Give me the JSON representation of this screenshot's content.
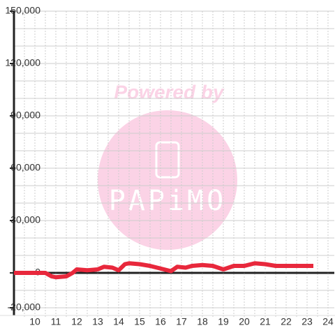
{
  "chart_data": {
    "type": "line",
    "x": [
      9,
      10,
      10.5,
      10.8,
      11,
      11.5,
      11.8,
      12,
      12.5,
      13,
      13.3,
      13.7,
      14,
      14.3,
      14.5,
      15,
      15.5,
      16,
      16.5,
      16.8,
      17.2,
      17.5,
      18,
      18.5,
      19,
      19.5,
      20,
      20.5,
      21,
      21.5,
      22,
      23.3
    ],
    "series": [
      {
        "color": "#e8283c",
        "values": [
          0,
          0,
          0,
          -2000,
          -2500,
          -2000,
          0,
          2000,
          1500,
          2000,
          3500,
          3000,
          1500,
          5000,
          5500,
          5000,
          4000,
          2500,
          1000,
          3500,
          3000,
          4000,
          4500,
          4000,
          2000,
          4000,
          4000,
          5500,
          5000,
          4000,
          4000,
          4000
        ]
      }
    ],
    "xlim": [
      9,
      24.3
    ],
    "ylim": [
      -20000,
      150000
    ],
    "xticks": [
      10,
      11,
      12,
      13,
      14,
      15,
      16,
      17,
      18,
      19,
      20,
      21,
      22,
      23,
      24
    ],
    "yticks": [
      {
        "value": -20000,
        "label": "-20,000"
      },
      {
        "value": 0,
        "label": "0"
      },
      {
        "value": 30000,
        "label": "30,000"
      },
      {
        "value": 60000,
        "label": "60,000"
      },
      {
        "value": 90000,
        "label": "90,000"
      },
      {
        "value": 120000,
        "label": "120,000"
      },
      {
        "value": 150000,
        "label": "150,000"
      }
    ],
    "ygrid": [
      -10000,
      10000,
      20000,
      40000,
      50000,
      70000,
      80000,
      100000,
      110000,
      130000,
      140000
    ],
    "xgrid": [
      9.5,
      10.5,
      11.5,
      12.5,
      13.5,
      14.5,
      15.5,
      16.5,
      17.5,
      18.5,
      19.5,
      20.5,
      21.5,
      22.5,
      23.5
    ],
    "watermark": [
      "Powered by",
      "PAPiMO"
    ]
  }
}
